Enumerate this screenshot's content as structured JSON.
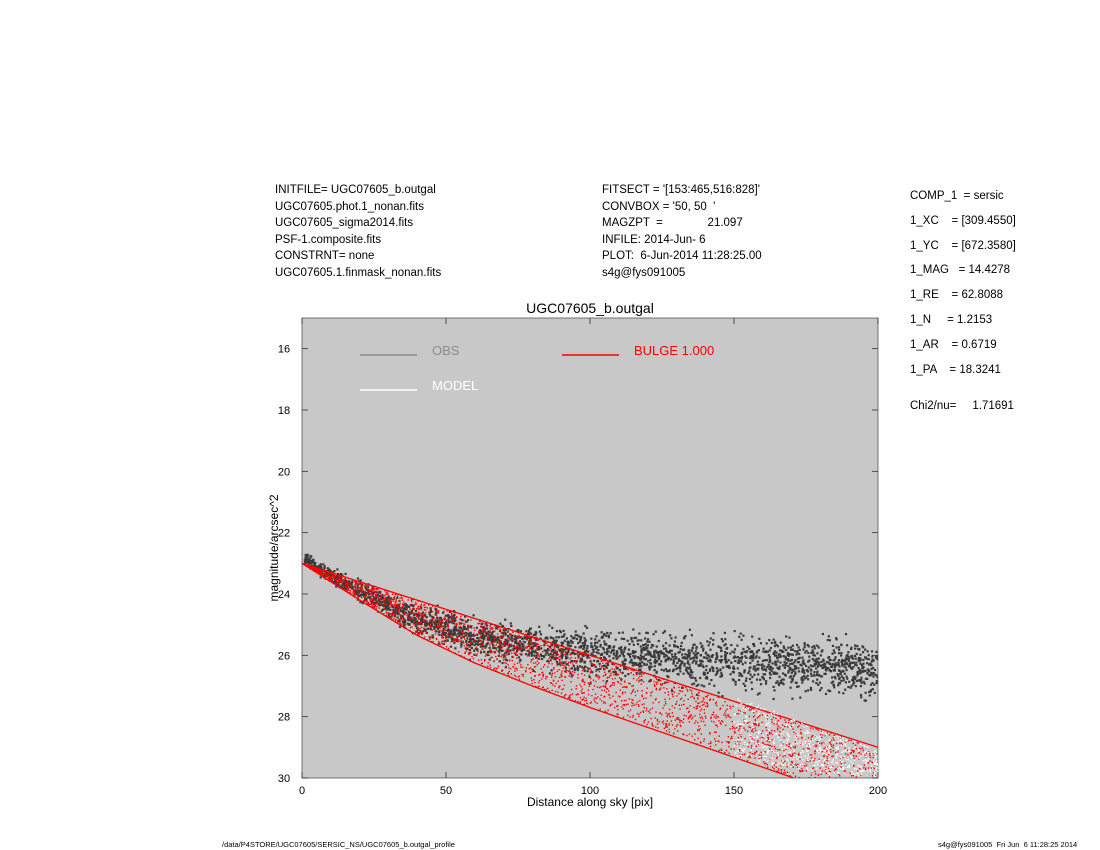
{
  "header_left": [
    "INITFILE= UGC07605_b.outgal",
    "UGC07605.phot.1_nonan.fits",
    "UGC07605_sigma2014.fits",
    "PSF-1.composite.fits",
    "CONSTRNT= none",
    "UGC07605.1.finmask_nonan.fits"
  ],
  "header_mid": [
    "FITSECT = '[153:465,516:828]'",
    "CONVBOX = '50, 50  '",
    "MAGZPT  =              21.097",
    "INFILE: 2014-Jun- 6",
    "PLOT:  6-Jun-2014 11:28:25.00",
    "s4g@fys091005"
  ],
  "params": [
    "COMP_1  = sersic",
    "1_XC    = [309.4550]",
    "1_YC    = [672.3580]",
    "1_MAG   = 14.4278",
    "1_RE    = 62.8088",
    "1_N     = 1.2153",
    "1_AR    = 0.6719",
    "1_PA    = 18.3241"
  ],
  "chi2": "Chi2/nu=     1.71691",
  "footer_left": "/data/P4STORE/UGC07605/SERSIC_NS/UGC07605_b.outgal_profile",
  "footer_right": "s4g@fys091005  Fri Jun  6 11:28:25 2014",
  "colors": {
    "plot_bg": "#c8c8c8",
    "obs": "#3a3a3a",
    "obs_legend": "#8c8c8c",
    "model": "#ffffff",
    "bulge": "#ff0000"
  },
  "chart_data": {
    "type": "scatter",
    "title": "UGC07605_b.outgal",
    "xlabel": "Distance along sky [pix]",
    "ylabel": "magnitude/arcsec^2",
    "xlim": [
      0,
      200
    ],
    "ylim": [
      30,
      15
    ],
    "y_inverted": true,
    "grid": false,
    "xticks": [
      0,
      50,
      100,
      150,
      200
    ],
    "yticks": [
      16,
      18,
      20,
      22,
      24,
      26,
      28,
      30
    ],
    "legend": [
      {
        "name": "OBS",
        "color": "#8c8c8c"
      },
      {
        "name": "MODEL",
        "color": "#ffffff"
      },
      {
        "name": "BULGE  1.000",
        "color": "#ff0000"
      }
    ],
    "series": [
      {
        "name": "OBS",
        "x": [
          2,
          5,
          8,
          12,
          16,
          20,
          25,
          30,
          35,
          40,
          45,
          50,
          55,
          60,
          65,
          70,
          75,
          80,
          85,
          90,
          95,
          100,
          105,
          110,
          115,
          120,
          125,
          130,
          135,
          140,
          145,
          150,
          155,
          160,
          165,
          170,
          175,
          180,
          185,
          190,
          195,
          200
        ],
        "y": [
          22.9,
          23.1,
          23.3,
          23.5,
          23.7,
          23.9,
          24.1,
          24.35,
          24.6,
          24.8,
          24.95,
          25.1,
          25.25,
          25.4,
          25.5,
          25.6,
          25.65,
          25.7,
          25.75,
          25.8,
          25.85,
          25.9,
          25.95,
          26.0,
          26.0,
          26.05,
          26.1,
          26.1,
          26.15,
          26.2,
          26.2,
          26.25,
          26.3,
          26.3,
          26.3,
          26.35,
          26.4,
          26.4,
          26.4,
          26.45,
          26.45,
          26.5
        ],
        "spread": [
          0.3,
          0.35,
          0.4,
          0.5,
          0.55,
          0.6,
          0.65,
          0.7,
          0.75,
          0.8,
          0.85,
          0.9,
          0.95,
          1.0,
          1.0,
          1.05,
          1.1,
          1.15,
          1.2,
          1.2,
          1.25,
          1.3,
          1.3,
          1.3,
          1.35,
          1.35,
          1.4,
          1.4,
          1.4,
          1.45,
          1.45,
          1.5,
          1.5,
          1.5,
          1.5,
          1.55,
          1.55,
          1.6,
          1.6,
          1.6,
          1.6,
          1.6
        ]
      },
      {
        "name": "BULGE  1.000",
        "x": [
          0,
          20,
          40,
          60,
          80,
          100,
          120,
          140,
          160,
          180,
          200
        ],
        "y_upper": [
          23.0,
          23.6,
          24.2,
          24.8,
          25.4,
          26.0,
          26.6,
          27.2,
          27.8,
          28.4,
          29.0
        ],
        "y_lower": [
          23.0,
          24.2,
          25.35,
          26.25,
          27.0,
          27.7,
          28.35,
          29.0,
          29.65,
          30.3,
          30.9
        ]
      },
      {
        "name": "MODEL",
        "x": [
          150,
          165,
          180,
          190,
          200
        ],
        "y_upper": [
          27.35,
          27.85,
          28.45,
          28.75,
          29.05
        ],
        "y_lower": [
          29.3,
          29.6,
          29.85,
          29.9,
          29.95
        ]
      }
    ]
  }
}
